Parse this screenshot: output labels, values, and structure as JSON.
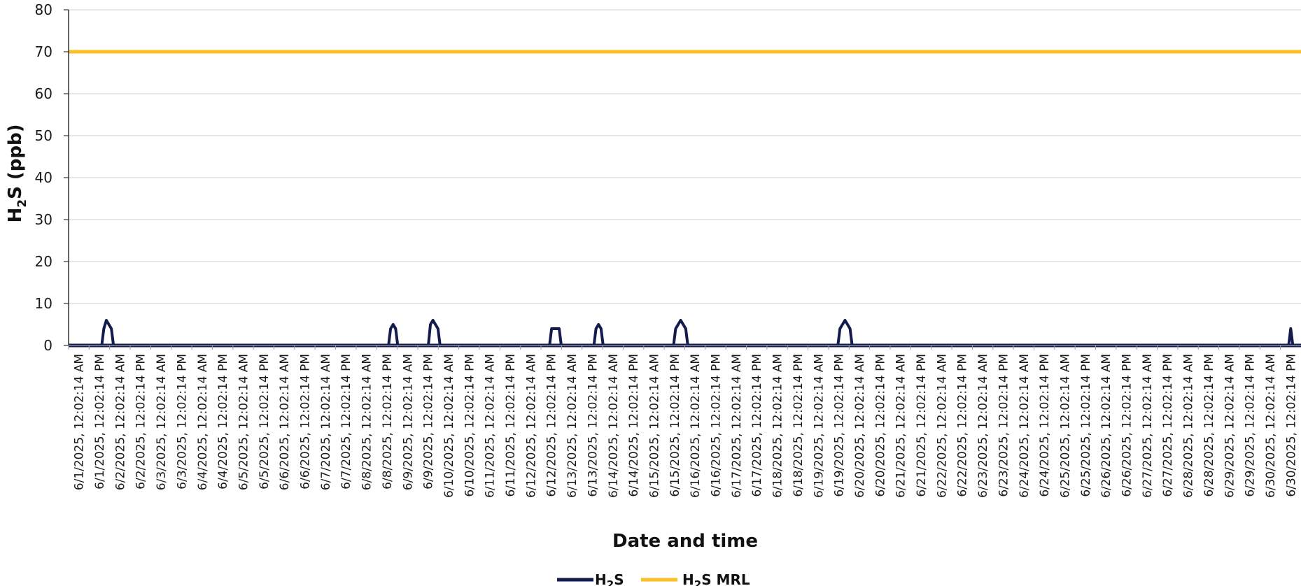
{
  "chart_data": {
    "type": "line",
    "ylabel": {
      "main": "H",
      "sub": "2",
      "rest": "S (ppb)"
    },
    "xlabel": "Date and time",
    "ylim": [
      0,
      80
    ],
    "yticks": [
      0,
      10,
      20,
      30,
      40,
      50,
      60,
      70,
      80
    ],
    "grid": true,
    "legend_position": "bottom",
    "colors": {
      "h2s": "#141b4d",
      "mrl": "#fbbf24"
    },
    "categories": [
      "6/1/2025, 12:02:14 AM",
      "6/1/2025, 12:02:14 PM",
      "6/2/2025, 12:02:14 AM",
      "6/2/2025, 12:02:14 PM",
      "6/3/2025, 12:02:14 AM",
      "6/3/2025, 12:02:14 PM",
      "6/4/2025, 12:02:14 AM",
      "6/4/2025, 12:02:14 PM",
      "6/5/2025, 12:02:14 AM",
      "6/5/2025, 12:02:14 PM",
      "6/6/2025, 12:02:14 AM",
      "6/6/2025, 12:02:14 PM",
      "6/7/2025, 12:02:14 AM",
      "6/7/2025, 12:02:14 PM",
      "6/8/2025, 12:02:14 AM",
      "6/8/2025, 12:02:14 PM",
      "6/9/2025, 12:02:14 AM",
      "6/9/2025, 12:02:14 PM",
      "6/10/2025, 12:02:14 AM",
      "6/10/2025, 12:02:14 PM",
      "6/11/2025, 12:02:14 AM",
      "6/11/2025, 12:02:14 PM",
      "6/12/2025, 12:02:14 AM",
      "6/12/2025, 12:02:14 PM",
      "6/13/2025, 12:02:14 AM",
      "6/13/2025, 12:02:14 PM",
      "6/14/2025, 12:02:14 AM",
      "6/14/2025, 12:02:14 PM",
      "6/15/2025, 12:02:14 AM",
      "6/15/2025, 12:02:14 PM",
      "6/16/2025, 12:02:14 AM",
      "6/16/2025, 12:02:14 PM",
      "6/17/2025, 12:02:14 AM",
      "6/17/2025, 12:02:14 PM",
      "6/18/2025, 12:02:14 AM",
      "6/18/2025, 12:02:14 PM",
      "6/19/2025, 12:02:14 AM",
      "6/19/2025, 12:02:14 PM",
      "6/20/2025, 12:02:14 AM",
      "6/20/2025, 12:02:14 PM",
      "6/21/2025, 12:02:14 AM",
      "6/21/2025, 12:02:14 PM",
      "6/22/2025, 12:02:14 AM",
      "6/22/2025, 12:02:14 PM",
      "6/23/2025, 12:02:14 AM",
      "6/23/2025, 12:02:14 PM",
      "6/24/2025, 12:02:14 AM",
      "6/24/2025, 12:02:14 PM",
      "6/25/2025, 12:02:14 AM",
      "6/25/2025, 12:02:14 PM",
      "6/26/2025, 12:02:14 AM",
      "6/26/2025, 12:02:14 PM",
      "6/27/2025, 12:02:14 AM",
      "6/27/2025, 12:02:14 PM",
      "6/28/2025, 12:02:14 AM",
      "6/28/2025, 12:02:14 PM",
      "6/29/2025, 12:02:14 AM",
      "6/29/2025, 12:02:14 PM",
      "6/30/2025, 12:02:14 AM",
      "6/30/2025, 12:02:14 PM"
    ],
    "series": [
      {
        "name": "H₂S",
        "legend": {
          "main": "H",
          "sub": "2",
          "rest": "S"
        },
        "baseline": 0,
        "peaks": [
          {
            "x": 1.4,
            "values": [
              4,
              6,
              5,
              4
            ]
          },
          {
            "x": 15.3,
            "values": [
              4,
              5,
              4
            ]
          },
          {
            "x": 17.3,
            "values": [
              5,
              6,
              5,
              4
            ]
          },
          {
            "x": 23.2,
            "values": [
              4,
              4,
              4,
              4
            ]
          },
          {
            "x": 25.3,
            "values": [
              4,
              5,
              4
            ]
          },
          {
            "x": 29.3,
            "values": [
              4,
              5,
              6,
              5,
              4
            ]
          },
          {
            "x": 37.3,
            "values": [
              4,
              5,
              6,
              5,
              4
            ]
          },
          {
            "x": 59.0,
            "values": [
              4
            ]
          }
        ]
      },
      {
        "name": "H₂S MRL",
        "legend": {
          "main": "H",
          "sub": "2",
          "rest": "S MRL"
        },
        "value": 70
      }
    ]
  }
}
